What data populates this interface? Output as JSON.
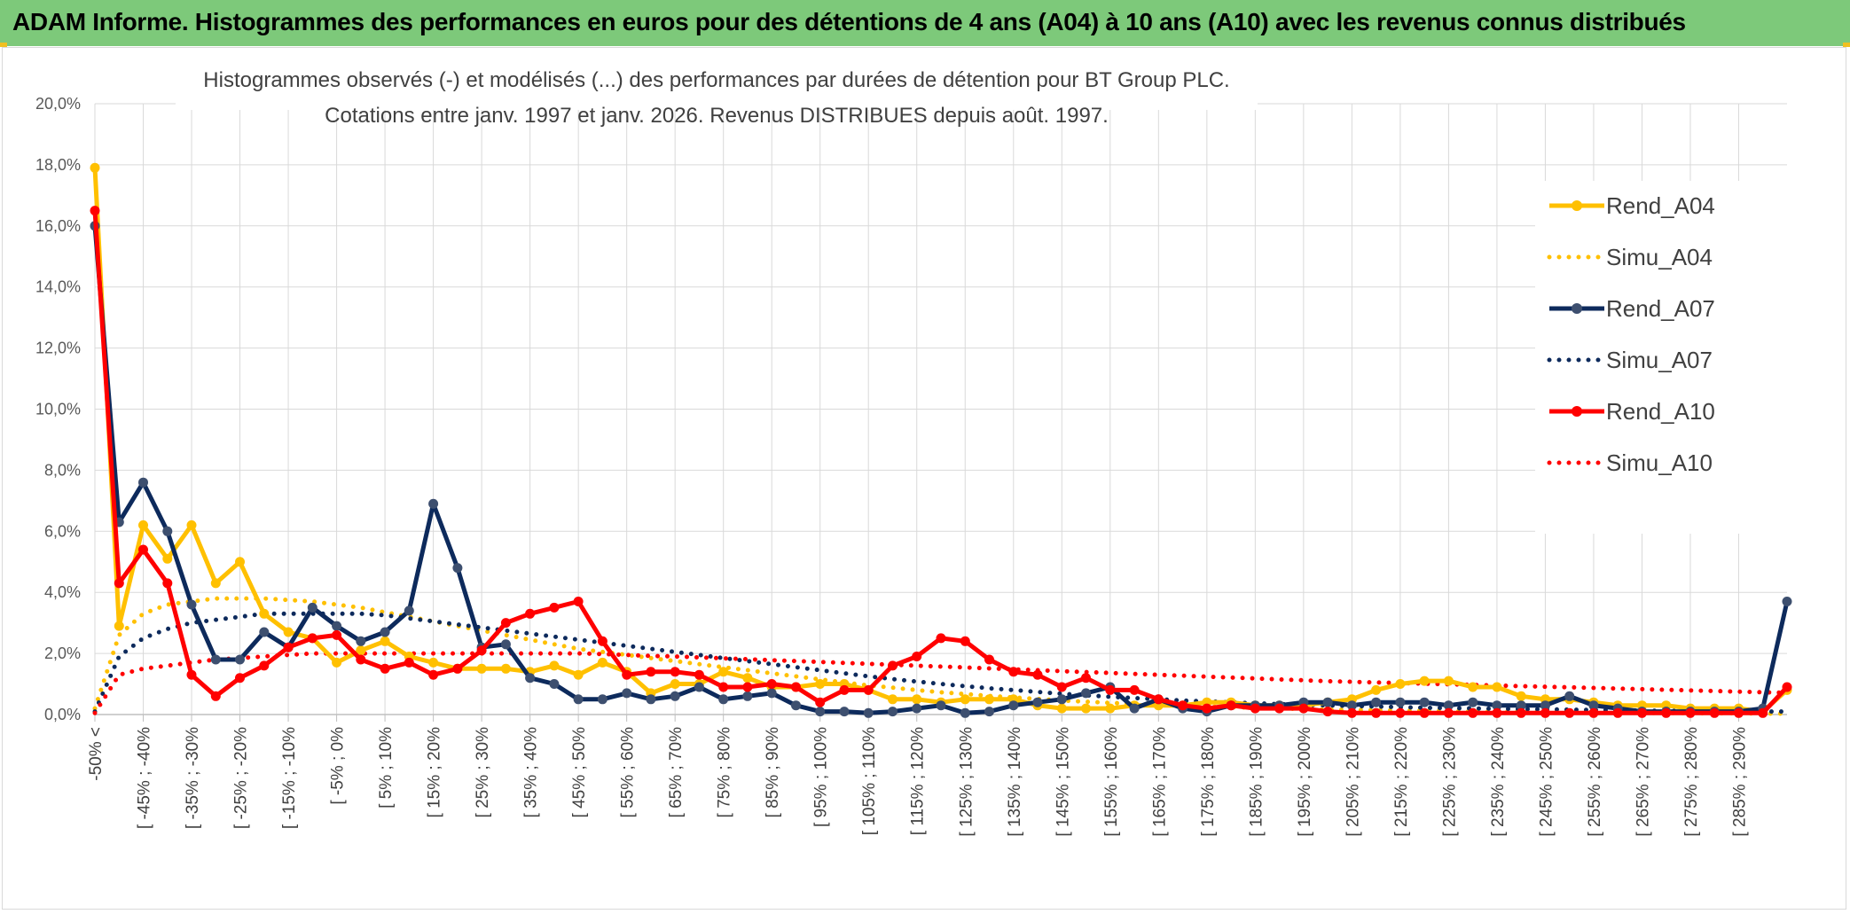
{
  "header": {
    "title": "ADAM Informe. Histogrammes des performances en euros pour des détentions de 4 ans (A04) à 10 ans (A10) avec les revenus connus distribués"
  },
  "chart_data": {
    "type": "line",
    "title_lines": [
      "Histogrammes observés (-) et modélisés (...) des performances par durées de détention pour BT Group PLC.",
      "Cotations entre janv. 1997 et janv. 2026. Revenus DISTRIBUES depuis août. 1997."
    ],
    "ylim": [
      0,
      20
    ],
    "yticks": [
      "0,0%",
      "2,0%",
      "4,0%",
      "6,0%",
      "8,0%",
      "10,0%",
      "12,0%",
      "14,0%",
      "16,0%",
      "18,0%",
      "20,0%"
    ],
    "xtick_labels": [
      "-50% <",
      "[ -45% ; -40%",
      "[ -35% ; -30%",
      "[ -25% ; -20%",
      "[ -15% ; -10%",
      "[ -5% ; 0%",
      "[ 5% ; 10%",
      "[ 15% ; 20%",
      "[ 25% ; 30%",
      "[ 35% ; 40%",
      "[ 45% ; 50%",
      "[ 55% ; 60%",
      "[ 65% ; 70%",
      "[ 75% ; 80%",
      "[ 85% ; 90%",
      "[ 95% ; 100%",
      "[ 105% ; 110%",
      "[ 115% ; 120%",
      "[ 125% ; 130%",
      "[ 135% ; 140%",
      "[ 145% ; 150%",
      "[ 155% ; 160%",
      "[ 165% ; 170%",
      "[ 175% ; 180%",
      "[ 185% ; 190%",
      "[ 195% ; 200%",
      "[ 205% ; 210%",
      "[ 215% ; 220%",
      "[ 225% ; 230%",
      "[ 235% ; 240%",
      "[ 245% ; 250%",
      "[ 255% ; 260%",
      "[ 265% ; 270%",
      "[ 275% ; 280%",
      "[ 285% ; 290%"
    ],
    "n_points": 71,
    "series": [
      {
        "name": "Rend_A04",
        "style": "solid",
        "color": "#ffc000",
        "values": [
          17.9,
          2.9,
          6.2,
          5.1,
          6.2,
          4.3,
          5.0,
          3.3,
          2.7,
          2.5,
          1.7,
          2.1,
          2.4,
          1.9,
          1.7,
          1.5,
          1.5,
          1.5,
          1.4,
          1.6,
          1.3,
          1.7,
          1.4,
          0.7,
          1.0,
          1.0,
          1.4,
          1.2,
          0.9,
          0.9,
          1.0,
          1.0,
          0.8,
          0.5,
          0.5,
          0.4,
          0.5,
          0.5,
          0.5,
          0.3,
          0.2,
          0.2,
          0.2,
          0.3,
          0.3,
          0.3,
          0.4,
          0.4,
          0.3,
          0.3,
          0.3,
          0.4,
          0.5,
          0.8,
          1.0,
          1.1,
          1.1,
          0.9,
          0.9,
          0.6,
          0.5,
          0.5,
          0.4,
          0.3,
          0.3,
          0.3,
          0.2,
          0.2,
          0.2,
          0.1,
          0.8
        ]
      },
      {
        "name": "Simu_A04",
        "style": "dotted",
        "color": "#ffc000",
        "values": [
          0.2,
          2.6,
          3.3,
          3.6,
          3.7,
          3.8,
          3.8,
          3.8,
          3.75,
          3.7,
          3.6,
          3.5,
          3.35,
          3.2,
          3.05,
          2.9,
          2.75,
          2.6,
          2.45,
          2.3,
          2.15,
          2.05,
          1.95,
          1.85,
          1.75,
          1.65,
          1.55,
          1.45,
          1.35,
          1.25,
          1.15,
          1.05,
          0.95,
          0.88,
          0.8,
          0.73,
          0.67,
          0.61,
          0.56,
          0.51,
          0.46,
          0.42,
          0.38,
          0.35,
          0.32,
          0.29,
          0.26,
          0.24,
          0.22,
          0.2,
          0.18,
          0.16,
          0.15,
          0.14,
          0.13,
          0.12,
          0.11,
          0.1,
          0.09,
          0.08,
          0.07,
          0.07,
          0.06,
          0.06,
          0.05,
          0.05,
          0.04,
          0.04,
          0.04,
          0.03,
          0.03
        ]
      },
      {
        "name": "Rend_A07",
        "style": "solid",
        "color": "#0d2a5c",
        "values": [
          16.0,
          6.3,
          7.6,
          6.0,
          3.6,
          1.8,
          1.8,
          2.7,
          2.2,
          3.5,
          2.9,
          2.4,
          2.7,
          3.4,
          6.9,
          4.8,
          2.2,
          2.3,
          1.2,
          1.0,
          0.5,
          0.5,
          0.7,
          0.5,
          0.6,
          0.9,
          0.5,
          0.6,
          0.7,
          0.3,
          0.1,
          0.1,
          0.05,
          0.1,
          0.2,
          0.3,
          0.05,
          0.1,
          0.3,
          0.4,
          0.5,
          0.7,
          0.9,
          0.2,
          0.5,
          0.2,
          0.1,
          0.3,
          0.3,
          0.3,
          0.4,
          0.4,
          0.3,
          0.4,
          0.4,
          0.4,
          0.3,
          0.4,
          0.3,
          0.3,
          0.3,
          0.6,
          0.3,
          0.2,
          0.1,
          0.1,
          0.1,
          0.1,
          0.1,
          0.2,
          3.7
        ]
      },
      {
        "name": "Simu_A07",
        "style": "dotted",
        "color": "#0d2a5c",
        "values": [
          0.1,
          1.9,
          2.5,
          2.8,
          3.0,
          3.1,
          3.2,
          3.3,
          3.3,
          3.3,
          3.3,
          3.3,
          3.25,
          3.15,
          3.05,
          2.95,
          2.85,
          2.75,
          2.65,
          2.55,
          2.45,
          2.35,
          2.25,
          2.15,
          2.05,
          1.95,
          1.85,
          1.75,
          1.65,
          1.55,
          1.45,
          1.35,
          1.25,
          1.16,
          1.08,
          1.0,
          0.93,
          0.86,
          0.8,
          0.74,
          0.68,
          0.63,
          0.58,
          0.54,
          0.5,
          0.46,
          0.43,
          0.4,
          0.37,
          0.34,
          0.32,
          0.3,
          0.28,
          0.26,
          0.24,
          0.22,
          0.21,
          0.2,
          0.19,
          0.18,
          0.17,
          0.16,
          0.15,
          0.14,
          0.13,
          0.12,
          0.12,
          0.11,
          0.11,
          0.1,
          0.1
        ]
      },
      {
        "name": "Rend_A10",
        "style": "solid",
        "color": "#ff0000",
        "values": [
          16.5,
          4.3,
          5.4,
          4.3,
          1.3,
          0.6,
          1.2,
          1.6,
          2.2,
          2.5,
          2.6,
          1.8,
          1.5,
          1.7,
          1.3,
          1.5,
          2.1,
          3.0,
          3.3,
          3.5,
          3.7,
          2.4,
          1.3,
          1.4,
          1.4,
          1.3,
          0.9,
          0.9,
          1.0,
          0.9,
          0.4,
          0.8,
          0.8,
          1.6,
          1.9,
          2.5,
          2.4,
          1.8,
          1.4,
          1.3,
          0.9,
          1.2,
          0.8,
          0.8,
          0.5,
          0.3,
          0.2,
          0.3,
          0.2,
          0.2,
          0.2,
          0.1,
          0.05,
          0.05,
          0.05,
          0.05,
          0.05,
          0.05,
          0.05,
          0.05,
          0.05,
          0.05,
          0.05,
          0.05,
          0.05,
          0.05,
          0.05,
          0.05,
          0.05,
          0.05,
          0.9
        ]
      },
      {
        "name": "Simu_A10",
        "style": "dotted",
        "color": "#ff0000",
        "values": [
          0.05,
          1.3,
          1.5,
          1.6,
          1.7,
          1.8,
          1.85,
          1.9,
          1.95,
          2.0,
          2.0,
          2.0,
          2.0,
          2.0,
          2.0,
          2.0,
          2.0,
          2.0,
          2.0,
          2.0,
          2.0,
          1.98,
          1.95,
          1.92,
          1.9,
          1.87,
          1.84,
          1.81,
          1.78,
          1.75,
          1.72,
          1.69,
          1.66,
          1.63,
          1.6,
          1.57,
          1.54,
          1.51,
          1.48,
          1.45,
          1.42,
          1.39,
          1.36,
          1.33,
          1.3,
          1.27,
          1.24,
          1.21,
          1.18,
          1.15,
          1.12,
          1.09,
          1.07,
          1.05,
          1.03,
          1.01,
          0.99,
          0.97,
          0.95,
          0.93,
          0.91,
          0.89,
          0.87,
          0.85,
          0.83,
          0.81,
          0.79,
          0.77,
          0.75,
          0.73,
          0.71
        ]
      }
    ],
    "legend": [
      "Rend_A04",
      "Simu_A04",
      "Rend_A07",
      "Simu_A07",
      "Rend_A10",
      "Simu_A10"
    ],
    "legend_position": "right"
  }
}
